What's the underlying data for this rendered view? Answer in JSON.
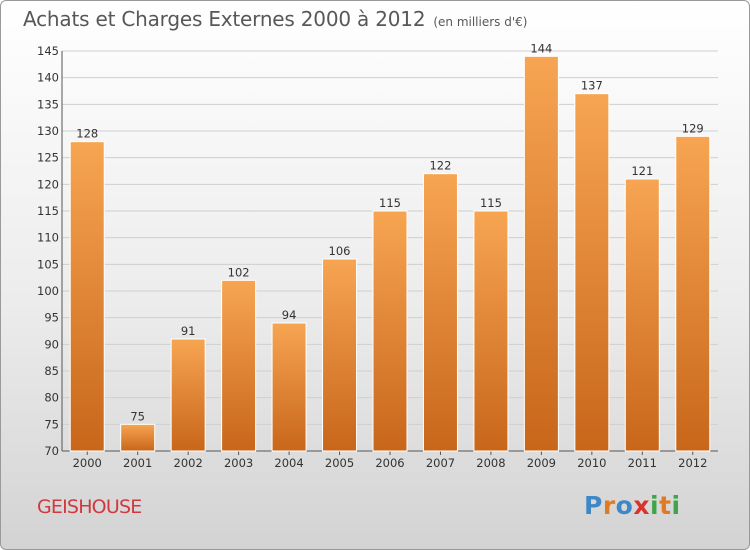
{
  "title": "Achats et Charges Externes 2000 à 2012",
  "unit": "(en milliers d'€)",
  "place": "GEISHOUSE",
  "logo": {
    "text": "Proxiti",
    "letters": [
      {
        "ch": "P",
        "color": "#3e88c8"
      },
      {
        "ch": "r",
        "color": "#e07b24"
      },
      {
        "ch": "o",
        "color": "#3e88c8"
      },
      {
        "ch": "x",
        "color": "#d8342c"
      },
      {
        "ch": "i",
        "color": "#3ea548"
      },
      {
        "ch": "t",
        "color": "#e07b24"
      },
      {
        "ch": "i",
        "color": "#3ea548"
      }
    ]
  },
  "colors": {
    "bar_light": "#f7a552",
    "bar_dark": "#c8661a",
    "grid": "#cfcfcf"
  },
  "chart_data": {
    "type": "bar",
    "title": "Achats et Charges Externes 2000 à 2012",
    "categories": [
      "2000",
      "2001",
      "2002",
      "2003",
      "2004",
      "2005",
      "2006",
      "2007",
      "2008",
      "2009",
      "2010",
      "2011",
      "2012"
    ],
    "values": [
      128,
      75,
      91,
      102,
      94,
      106,
      115,
      122,
      115,
      144,
      137,
      121,
      129
    ],
    "ylim": [
      70,
      145
    ],
    "yticks": [
      70,
      75,
      80,
      85,
      90,
      95,
      100,
      105,
      110,
      115,
      120,
      125,
      130,
      135,
      140,
      145
    ],
    "grid": true,
    "data_labels": true
  }
}
